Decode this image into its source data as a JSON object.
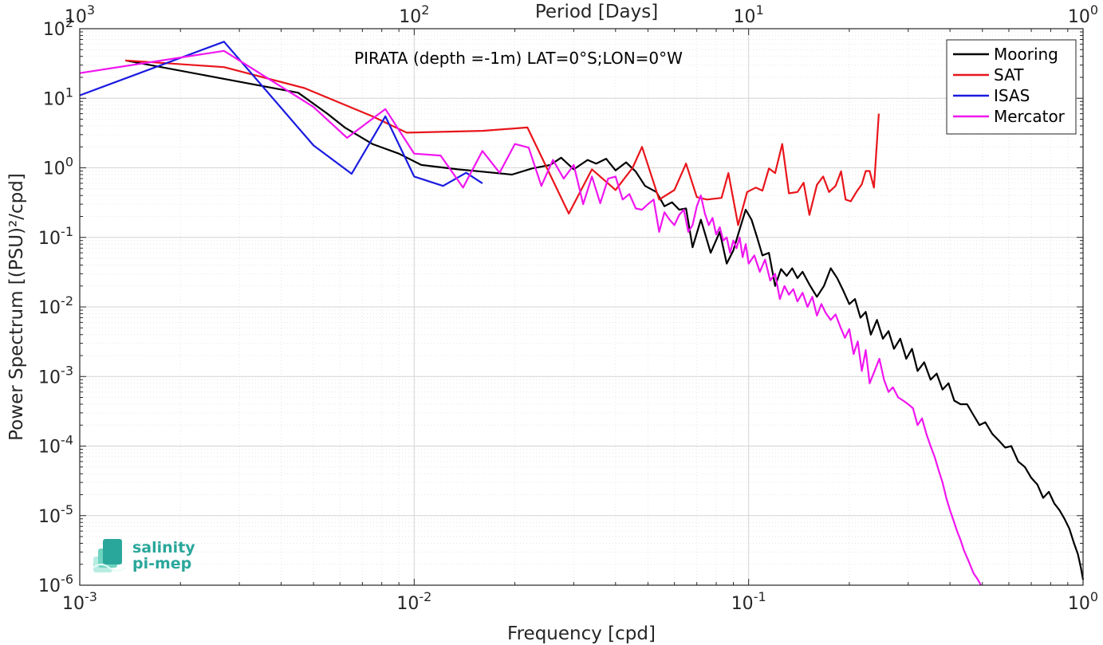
{
  "chart_data": {
    "type": "line",
    "title": "PIRATA (depth =-1m) LAT=0°S;LON=0°W",
    "xlabel": "Frequency [cpd]",
    "ylabel": "Power Spectrum [(PSU)²/cpd]",
    "x2label": "Period [Days]",
    "xscale": "log",
    "yscale": "log",
    "xlim": [
      0.001,
      1
    ],
    "ylim": [
      1e-06,
      100
    ],
    "grid": true,
    "legend_position": "top-right",
    "x_tick_labels": [
      {
        "base": "10",
        "exp": "-3",
        "value": 0.001
      },
      {
        "base": "10",
        "exp": "-2",
        "value": 0.01
      },
      {
        "base": "10",
        "exp": "-1",
        "value": 0.1
      },
      {
        "base": "10",
        "exp": "0",
        "value": 1
      }
    ],
    "x2_tick_labels": [
      {
        "base": "10",
        "exp": "3",
        "value": 0.001
      },
      {
        "base": "10",
        "exp": "2",
        "value": 0.01
      },
      {
        "base": "10",
        "exp": "1",
        "value": 0.1
      },
      {
        "base": "10",
        "exp": "0",
        "value": 1
      }
    ],
    "y_tick_labels": [
      {
        "base": "10",
        "exp": "2",
        "value": 100
      },
      {
        "base": "10",
        "exp": "1",
        "value": 10
      },
      {
        "base": "10",
        "exp": "0",
        "value": 1
      },
      {
        "base": "10",
        "exp": "-1",
        "value": 0.1
      },
      {
        "base": "10",
        "exp": "-2",
        "value": 0.01
      },
      {
        "base": "10",
        "exp": "-3",
        "value": 0.001
      },
      {
        "base": "10",
        "exp": "-4",
        "value": 0.0001
      },
      {
        "base": "10",
        "exp": "-5",
        "value": 1e-05
      },
      {
        "base": "10",
        "exp": "-6",
        "value": 1e-06
      }
    ],
    "series": [
      {
        "name": "Mooring",
        "color": "#000000",
        "points": [
          [
            0.00137,
            35
          ],
          [
            0.0027,
            19
          ],
          [
            0.0045,
            12
          ],
          [
            0.0055,
            6
          ],
          [
            0.0062,
            3.8
          ],
          [
            0.0075,
            2.2
          ],
          [
            0.009,
            1.6
          ],
          [
            0.0105,
            1.1
          ],
          [
            0.0135,
            0.95
          ],
          [
            0.016,
            0.88
          ],
          [
            0.0196,
            0.8
          ],
          [
            0.0225,
            0.98
          ],
          [
            0.0255,
            1.1
          ],
          [
            0.0275,
            1.4
          ],
          [
            0.03,
            0.95
          ],
          [
            0.033,
            1.3
          ],
          [
            0.035,
            1.15
          ],
          [
            0.0375,
            1.35
          ],
          [
            0.04,
            0.92
          ],
          [
            0.043,
            1.2
          ],
          [
            0.046,
            0.88
          ],
          [
            0.049,
            0.55
          ],
          [
            0.053,
            0.45
          ],
          [
            0.056,
            0.28
          ],
          [
            0.059,
            0.32
          ],
          [
            0.062,
            0.25
          ],
          [
            0.065,
            0.26
          ],
          [
            0.068,
            0.072
          ],
          [
            0.072,
            0.18
          ],
          [
            0.077,
            0.06
          ],
          [
            0.082,
            0.12
          ],
          [
            0.086,
            0.042
          ],
          [
            0.09,
            0.065
          ],
          [
            0.094,
            0.13
          ],
          [
            0.098,
            0.25
          ],
          [
            0.102,
            0.18
          ],
          [
            0.106,
            0.1
          ],
          [
            0.11,
            0.055
          ],
          [
            0.115,
            0.06
          ],
          [
            0.12,
            0.02
          ],
          [
            0.125,
            0.035
          ],
          [
            0.13,
            0.028
          ],
          [
            0.135,
            0.036
          ],
          [
            0.14,
            0.026
          ],
          [
            0.145,
            0.032
          ],
          [
            0.152,
            0.021
          ],
          [
            0.16,
            0.014
          ],
          [
            0.168,
            0.02
          ],
          [
            0.176,
            0.036
          ],
          [
            0.184,
            0.026
          ],
          [
            0.192,
            0.017
          ],
          [
            0.2,
            0.011
          ],
          [
            0.208,
            0.013
          ],
          [
            0.216,
            0.007
          ],
          [
            0.224,
            0.0085
          ],
          [
            0.232,
            0.004
          ],
          [
            0.242,
            0.0065
          ],
          [
            0.252,
            0.0035
          ],
          [
            0.262,
            0.0045
          ],
          [
            0.272,
            0.0025
          ],
          [
            0.284,
            0.0035
          ],
          [
            0.296,
            0.0018
          ],
          [
            0.308,
            0.0025
          ],
          [
            0.32,
            0.0012
          ],
          [
            0.335,
            0.0016
          ],
          [
            0.35,
            0.0009
          ],
          [
            0.365,
            0.0011
          ],
          [
            0.38,
            0.00065
          ],
          [
            0.396,
            0.0008
          ],
          [
            0.412,
            0.00045
          ],
          [
            0.43,
            0.0004
          ],
          [
            0.45,
            0.0004
          ],
          [
            0.47,
            0.00028
          ],
          [
            0.49,
            0.0002
          ],
          [
            0.51,
            0.00022
          ],
          [
            0.535,
            0.00015
          ],
          [
            0.56,
            0.00012
          ],
          [
            0.585,
            9.5e-05
          ],
          [
            0.61,
            0.0001
          ],
          [
            0.64,
            6e-05
          ],
          [
            0.67,
            5e-05
          ],
          [
            0.7,
            3.5e-05
          ],
          [
            0.73,
            2.8e-05
          ],
          [
            0.76,
            1.8e-05
          ],
          [
            0.79,
            2.2e-05
          ],
          [
            0.82,
            1.5e-05
          ],
          [
            0.85,
            1.2e-05
          ],
          [
            0.88,
            9e-06
          ],
          [
            0.91,
            6.5e-06
          ],
          [
            0.94,
            4e-06
          ],
          [
            0.965,
            2.8e-06
          ],
          [
            0.985,
            1.8e-06
          ],
          [
            1.0,
            1.2e-06
          ]
        ]
      },
      {
        "name": "SAT",
        "color": "#e8151b",
        "points": [
          [
            0.00137,
            35
          ],
          [
            0.0027,
            28
          ],
          [
            0.0047,
            14
          ],
          [
            0.0075,
            5.5
          ],
          [
            0.0095,
            3.2
          ],
          [
            0.016,
            3.4
          ],
          [
            0.0218,
            3.8
          ],
          [
            0.029,
            0.22
          ],
          [
            0.034,
            0.95
          ],
          [
            0.04,
            0.48
          ],
          [
            0.045,
            1.0
          ],
          [
            0.048,
            2.0
          ],
          [
            0.054,
            0.35
          ],
          [
            0.06,
            0.48
          ],
          [
            0.065,
            1.15
          ],
          [
            0.07,
            0.38
          ],
          [
            0.075,
            0.35
          ],
          [
            0.083,
            0.37
          ],
          [
            0.087,
            0.84
          ],
          [
            0.093,
            0.15
          ],
          [
            0.099,
            0.45
          ],
          [
            0.105,
            0.52
          ],
          [
            0.11,
            0.47
          ],
          [
            0.115,
            0.98
          ],
          [
            0.12,
            0.84
          ],
          [
            0.126,
            2.2
          ],
          [
            0.132,
            0.43
          ],
          [
            0.14,
            0.45
          ],
          [
            0.146,
            0.61
          ],
          [
            0.152,
            0.21
          ],
          [
            0.16,
            0.57
          ],
          [
            0.167,
            0.75
          ],
          [
            0.174,
            0.45
          ],
          [
            0.182,
            0.55
          ],
          [
            0.189,
            0.89
          ],
          [
            0.195,
            0.35
          ],
          [
            0.202,
            0.33
          ],
          [
            0.21,
            0.45
          ],
          [
            0.218,
            0.58
          ],
          [
            0.224,
            0.9
          ],
          [
            0.23,
            0.9
          ],
          [
            0.237,
            0.52
          ],
          [
            0.245,
            6.0
          ]
        ]
      },
      {
        "name": "ISAS",
        "color": "#1a1ae0",
        "points": [
          [
            0.001,
            11
          ],
          [
            0.0027,
            65
          ],
          [
            0.005,
            2.1
          ],
          [
            0.0065,
            0.82
          ],
          [
            0.0082,
            5.5
          ],
          [
            0.01,
            0.75
          ],
          [
            0.0122,
            0.55
          ],
          [
            0.0143,
            0.85
          ],
          [
            0.016,
            0.6
          ]
        ]
      },
      {
        "name": "Mercator",
        "color": "#f016f0",
        "points": [
          [
            0.001,
            23
          ],
          [
            0.0027,
            48
          ],
          [
            0.005,
            7.5
          ],
          [
            0.0063,
            2.7
          ],
          [
            0.0082,
            7.0
          ],
          [
            0.01,
            1.6
          ],
          [
            0.012,
            1.5
          ],
          [
            0.014,
            0.52
          ],
          [
            0.016,
            1.75
          ],
          [
            0.018,
            0.85
          ],
          [
            0.02,
            2.2
          ],
          [
            0.022,
            1.95
          ],
          [
            0.024,
            0.55
          ],
          [
            0.026,
            1.3
          ],
          [
            0.028,
            0.7
          ],
          [
            0.03,
            1.1
          ],
          [
            0.032,
            0.3
          ],
          [
            0.034,
            0.75
          ],
          [
            0.036,
            0.31
          ],
          [
            0.038,
            0.7
          ],
          [
            0.04,
            0.75
          ],
          [
            0.042,
            0.35
          ],
          [
            0.044,
            0.42
          ],
          [
            0.046,
            0.26
          ],
          [
            0.048,
            0.25
          ],
          [
            0.05,
            0.3
          ],
          [
            0.052,
            0.35
          ],
          [
            0.054,
            0.12
          ],
          [
            0.056,
            0.23
          ],
          [
            0.058,
            0.18
          ],
          [
            0.06,
            0.15
          ],
          [
            0.062,
            0.21
          ],
          [
            0.064,
            0.25
          ],
          [
            0.066,
            0.12
          ],
          [
            0.068,
            0.15
          ],
          [
            0.07,
            0.28
          ],
          [
            0.072,
            0.4
          ],
          [
            0.074,
            0.22
          ],
          [
            0.076,
            0.15
          ],
          [
            0.078,
            0.19
          ],
          [
            0.08,
            0.11
          ],
          [
            0.082,
            0.14
          ],
          [
            0.084,
            0.09
          ],
          [
            0.086,
            0.1
          ],
          [
            0.088,
            0.06
          ],
          [
            0.09,
            0.09
          ],
          [
            0.092,
            0.07
          ],
          [
            0.094,
            0.1
          ],
          [
            0.096,
            0.052
          ],
          [
            0.098,
            0.08
          ],
          [
            0.1,
            0.042
          ],
          [
            0.104,
            0.055
          ],
          [
            0.108,
            0.032
          ],
          [
            0.112,
            0.048
          ],
          [
            0.116,
            0.024
          ],
          [
            0.12,
            0.03
          ],
          [
            0.124,
            0.013
          ],
          [
            0.128,
            0.02
          ],
          [
            0.132,
            0.015
          ],
          [
            0.136,
            0.018
          ],
          [
            0.14,
            0.012
          ],
          [
            0.145,
            0.016
          ],
          [
            0.15,
            0.01
          ],
          [
            0.155,
            0.014
          ],
          [
            0.16,
            0.0075
          ],
          [
            0.165,
            0.011
          ],
          [
            0.17,
            0.0082
          ],
          [
            0.176,
            0.0065
          ],
          [
            0.182,
            0.0078
          ],
          [
            0.188,
            0.0052
          ],
          [
            0.194,
            0.0036
          ],
          [
            0.2,
            0.0048
          ],
          [
            0.206,
            0.0021
          ],
          [
            0.212,
            0.0032
          ],
          [
            0.218,
            0.0012
          ],
          [
            0.224,
            0.0024
          ],
          [
            0.23,
            0.0008
          ],
          [
            0.238,
            0.0012
          ],
          [
            0.246,
            0.0018
          ],
          [
            0.254,
            0.0009
          ],
          [
            0.262,
            0.0006
          ],
          [
            0.27,
            0.0007
          ],
          [
            0.28,
            0.0005
          ],
          [
            0.29,
            0.00045
          ],
          [
            0.3,
            0.0004
          ],
          [
            0.31,
            0.00035
          ],
          [
            0.32,
            0.0002
          ],
          [
            0.33,
            0.00025
          ],
          [
            0.34,
            0.00015
          ],
          [
            0.35,
            0.0001
          ],
          [
            0.36,
            7e-05
          ],
          [
            0.37,
            4.5e-05
          ],
          [
            0.38,
            3e-05
          ],
          [
            0.39,
            1.8e-05
          ],
          [
            0.4,
            1.2e-05
          ],
          [
            0.41,
            8.5e-06
          ],
          [
            0.42,
            6e-06
          ],
          [
            0.43,
            4.5e-06
          ],
          [
            0.44,
            3.2e-06
          ],
          [
            0.455,
            2.2e-06
          ],
          [
            0.47,
            1.5e-06
          ],
          [
            0.485,
            1.2e-06
          ],
          [
            0.495,
            1e-06
          ]
        ]
      }
    ]
  },
  "logo": {
    "line1": "salinity",
    "line2": "pi-mep"
  }
}
